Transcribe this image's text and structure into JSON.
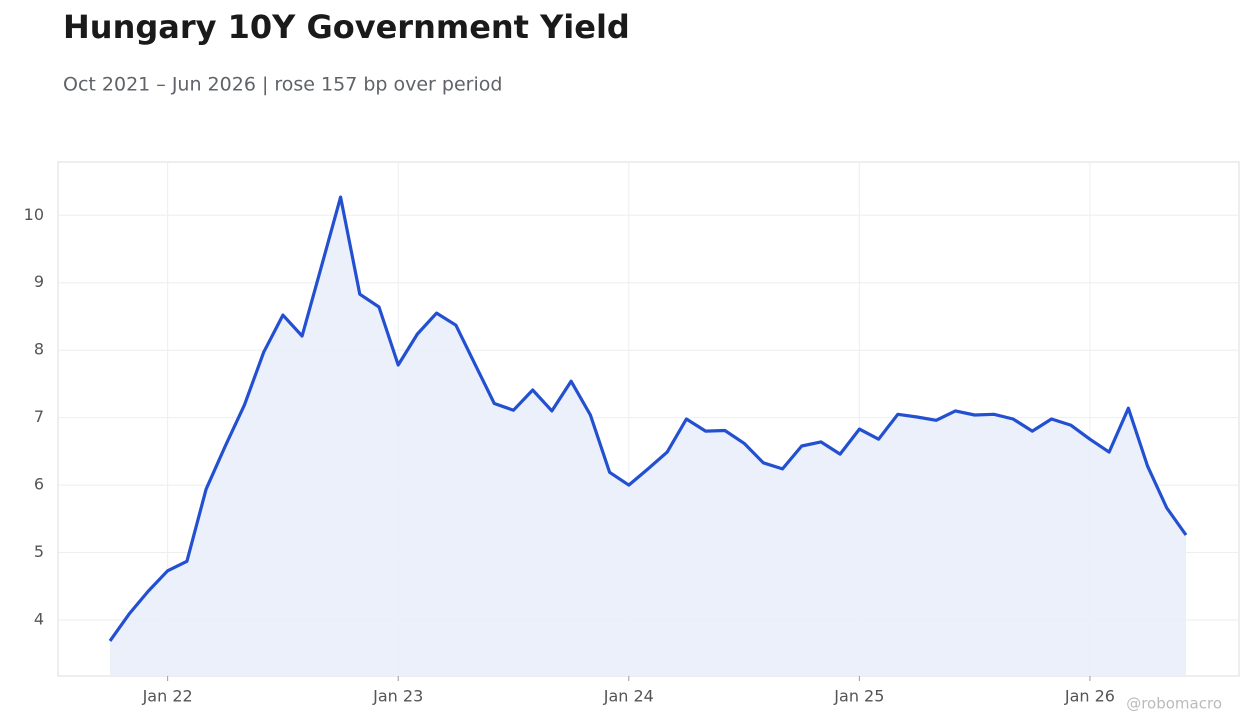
{
  "chart_data": {
    "type": "area-line",
    "title": "Hungary 10Y Government Yield",
    "subtitle": "Oct 2021 – Jun 2026 | rose 157 bp over period",
    "annotation": "@robomacro",
    "x": [
      "2021-10",
      "2021-11",
      "2021-12",
      "2022-01",
      "2022-02",
      "2022-03",
      "2022-04",
      "2022-05",
      "2022-06",
      "2022-07",
      "2022-08",
      "2022-09",
      "2022-10",
      "2022-11",
      "2022-12",
      "2023-01",
      "2023-02",
      "2023-03",
      "2023-04",
      "2023-05",
      "2023-06",
      "2023-07",
      "2023-08",
      "2023-09",
      "2023-10",
      "2023-11",
      "2023-12",
      "2024-01",
      "2024-02",
      "2024-03",
      "2024-04",
      "2024-05",
      "2024-06",
      "2024-07",
      "2024-08",
      "2024-09",
      "2024-10",
      "2024-11",
      "2024-12",
      "2025-01",
      "2025-02",
      "2025-03",
      "2025-04",
      "2025-05",
      "2025-06",
      "2025-07",
      "2025-08",
      "2025-09",
      "2025-10",
      "2025-11",
      "2025-12",
      "2026-01",
      "2026-02",
      "2026-03",
      "2026-04",
      "2026-05",
      "2026-06"
    ],
    "series": [
      {
        "color": "#2350d0",
        "fill": "#e9eefa",
        "values": [
          3.69,
          4.09,
          4.43,
          4.73,
          4.87,
          5.94,
          6.58,
          7.19,
          7.97,
          8.52,
          8.21,
          9.24,
          10.27,
          8.83,
          8.64,
          7.78,
          8.24,
          8.55,
          8.37,
          7.79,
          7.21,
          7.11,
          7.41,
          7.1,
          7.54,
          7.04,
          6.19,
          6.0,
          6.24,
          6.49,
          6.98,
          6.8,
          6.81,
          6.62,
          6.33,
          6.24,
          6.58,
          6.64,
          6.46,
          6.83,
          6.68,
          7.05,
          7.01,
          6.96,
          7.1,
          7.04,
          7.05,
          6.98,
          6.8,
          6.98,
          6.89,
          6.68,
          6.49,
          7.14,
          6.28,
          5.66,
          5.26
        ]
      }
    ],
    "xticks": [
      {
        "value": "2022-01",
        "label": "Jan 22"
      },
      {
        "value": "2023-01",
        "label": "Jan 23"
      },
      {
        "value": "2024-01",
        "label": "Jan 24"
      },
      {
        "value": "2025-01",
        "label": "Jan 25"
      },
      {
        "value": "2026-01",
        "label": "Jan 26"
      }
    ],
    "ylim": [
      3.17,
      10.79
    ],
    "yticks": [
      4,
      5,
      6,
      7,
      8,
      9,
      10
    ],
    "grid": true
  }
}
